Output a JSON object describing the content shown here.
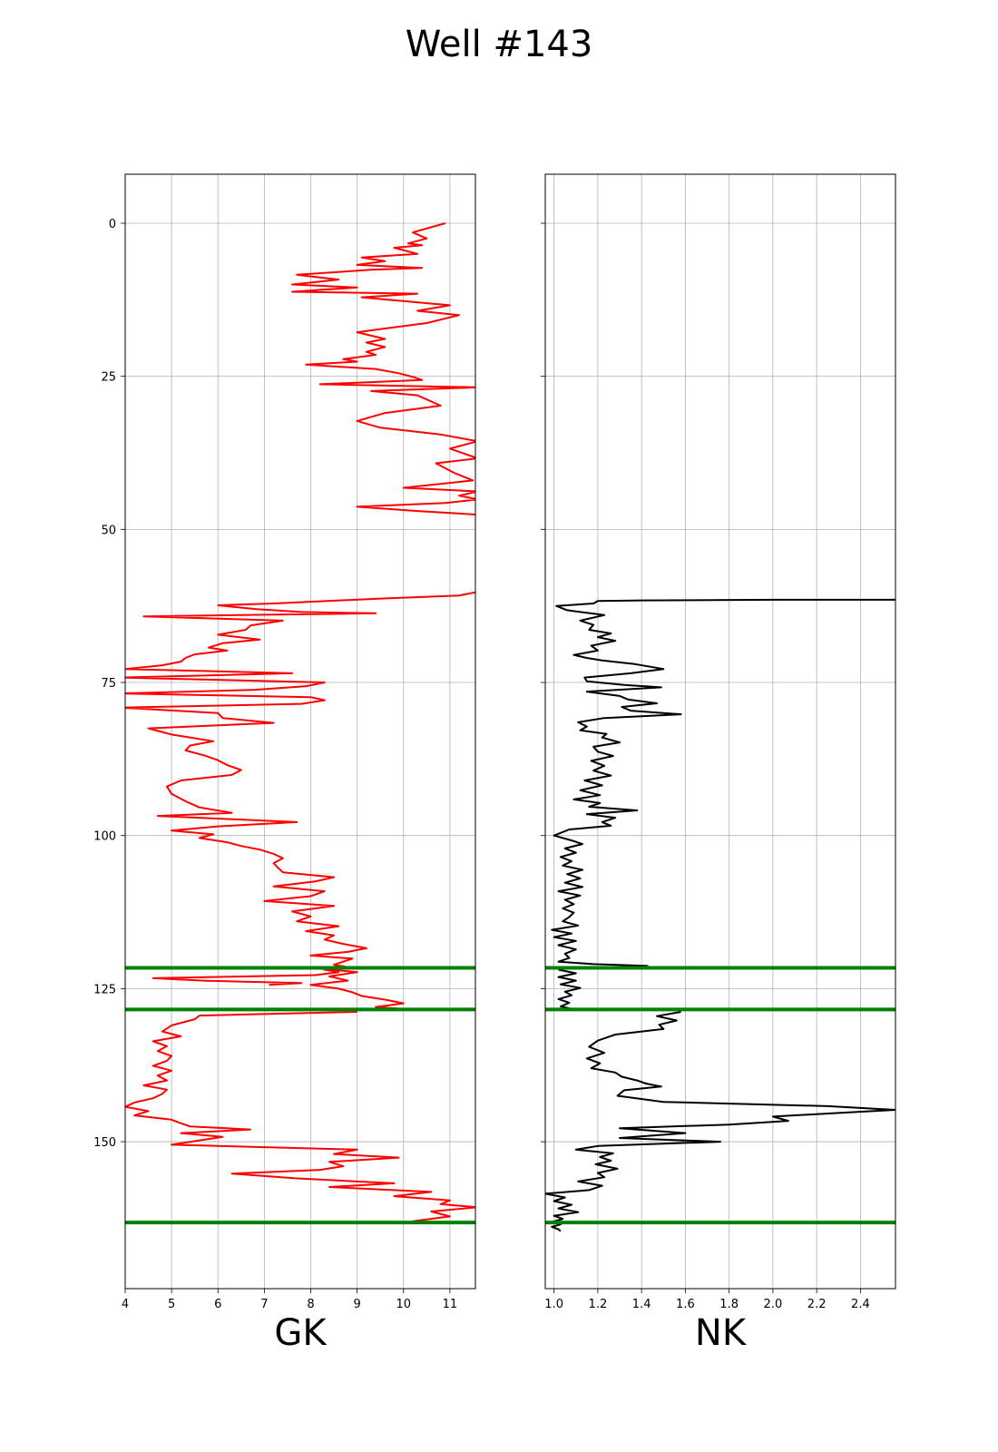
{
  "title": "Well #143",
  "chart_data": [
    {
      "type": "line",
      "xlabel": "GK",
      "ylabel": "",
      "xlim": [
        4,
        11.55
      ],
      "ylim": [
        174,
        -8
      ],
      "y_inverted": true,
      "grid": true,
      "xticks": [
        "4",
        "5",
        "6",
        "7",
        "8",
        "9",
        "10",
        "11"
      ],
      "yticks": [
        "0",
        "25",
        "50",
        "75",
        "100",
        "125",
        "150"
      ],
      "line_color": "#ff0000",
      "series": [
        {
          "x": [
            10.9,
            10.2,
            10.5,
            10.1,
            10.4,
            9.8,
            10.3,
            9.1,
            9.6,
            9.0,
            10.4,
            9.3,
            7.7,
            8.6,
            7.6,
            9.0,
            7.6,
            10.3,
            9.1,
            11.0,
            10.3,
            11.2,
            10.5,
            9.6,
            9.0,
            9.6,
            9.2,
            9.6,
            9.2,
            9.4,
            8.7,
            9.0,
            7.9,
            9.4,
            9.9,
            10.2,
            10.4,
            8.2,
            11.6,
            9.3,
            10.3,
            10.8,
            9.6,
            9.0,
            9.5,
            10.8,
            11.6,
            11.0,
            11.6,
            10.7,
            11.1,
            11.5,
            10.0,
            11.6,
            11.2,
            11.6,
            10.9,
            9.0,
            10.3,
            11.6,
            11.6
          ],
          "y": [
            0,
            1.5,
            2.5,
            3.3,
            3.6,
            4.0,
            5.0,
            5.6,
            6.2,
            6.8,
            7.3,
            7.6,
            8.4,
            9.2,
            10.0,
            10.5,
            11.2,
            11.5,
            12.1,
            13.4,
            14.3,
            15.0,
            16.3,
            17.2,
            17.8,
            18.9,
            19.5,
            20.2,
            21.0,
            21.5,
            22.2,
            22.6,
            23.1,
            23.8,
            24.5,
            25.1,
            25.6,
            26.3,
            26.8,
            27.4,
            28.1,
            29.8,
            31.0,
            32.3,
            33.4,
            34.5,
            35.6,
            36.8,
            38.4,
            39.2,
            40.8,
            42.0,
            43.2,
            43.8,
            44.5,
            45.1,
            45.7,
            46.3,
            47.0,
            47.6,
            48.0
          ]
        },
        {
          "x": [
            11.6,
            11.2,
            9.5,
            7.2,
            6.0,
            6.8,
            7.8,
            9.4,
            4.4,
            7.4,
            6.7,
            6.6,
            6.0,
            6.9,
            6.1,
            5.8,
            6.2,
            5.5,
            5.3,
            5.2,
            4.8,
            4.0,
            7.6,
            3.9,
            8.3,
            7.9,
            6.8,
            3.9,
            8.0,
            8.3,
            7.8,
            3.9,
            6.0,
            6.1,
            7.2,
            4.5,
            5.0,
            5.9,
            5.4,
            5.3,
            5.7,
            6.0,
            6.2,
            6.5,
            6.3,
            5.2,
            4.9,
            5.0,
            5.3,
            5.6,
            6.3,
            4.7,
            6.2,
            7.7,
            6.0,
            5.0,
            5.9,
            5.6,
            6.2,
            6.5,
            6.9,
            7.2,
            7.4,
            7.2,
            7.3,
            7.4,
            8.5,
            8.1,
            7.2,
            8.3,
            8.0,
            7.0,
            8.5,
            7.6,
            8.0,
            7.7,
            8.6,
            7.9,
            8.5,
            8.3,
            8.7,
            9.2,
            8.8,
            8.0,
            8.9,
            8.7,
            8.5,
            8.8,
            8.3,
            8.6,
            8.1,
            4.6,
            5.7,
            7.8,
            7.1
          ],
          "y": [
            60.2,
            60.8,
            61.3,
            62.1,
            62.4,
            63.0,
            63.5,
            63.7,
            64.2,
            64.9,
            65.7,
            66.4,
            67.2,
            68.0,
            68.6,
            69.3,
            69.8,
            70.4,
            71.0,
            71.6,
            72.2,
            72.8,
            73.5,
            74.2,
            75.0,
            75.6,
            76.2,
            76.8,
            77.4,
            77.9,
            78.5,
            79.1,
            80.0,
            80.8,
            81.6,
            82.5,
            83.5,
            84.6,
            85.3,
            86.1,
            86.9,
            87.7,
            88.5,
            89.3,
            90.1,
            91.0,
            92.0,
            93.2,
            94.4,
            95.4,
            96.3,
            96.8,
            97.3,
            97.8,
            98.5,
            99.2,
            99.8,
            100.4,
            101.1,
            101.7,
            102.3,
            103.0,
            103.7,
            104.5,
            105.3,
            106.0,
            106.8,
            107.5,
            108.3,
            109.1,
            109.9,
            110.7,
            111.5,
            112.4,
            113.2,
            114.0,
            114.8,
            115.6,
            116.3,
            117.0,
            117.7,
            118.4,
            119.0,
            119.6,
            120.1,
            120.6,
            121.1,
            121.5,
            121.9,
            122.3,
            122.8,
            123.3,
            123.7,
            124.1,
            124.4
          ]
        },
        {
          "x": [
            8.0,
            9.0,
            8.4,
            8.8,
            8.0,
            8.6,
            8.9,
            9.1,
            9.6,
            10.0,
            9.4,
            10.1
          ],
          "y": [
            121.6,
            122.3,
            123.0,
            123.7,
            124.4,
            125.0,
            125.6,
            126.2,
            126.8,
            127.4,
            128.0,
            128.4
          ]
        },
        {
          "x": [
            9.0,
            5.6,
            5.5,
            5.0,
            4.8,
            5.2,
            4.6,
            4.9,
            4.7,
            5.0,
            4.9,
            4.6,
            5.0,
            4.7,
            4.9,
            4.4,
            4.9,
            4.8,
            4.6,
            4.2,
            4.0,
            4.5,
            4.2,
            5.0,
            5.2,
            5.4,
            6.7,
            5.2,
            6.1,
            5.0,
            9.0,
            8.5,
            9.9,
            8.4,
            8.7,
            8.2,
            6.3,
            7.7,
            9.8,
            8.4,
            10.6,
            9.8,
            11.0,
            10.8,
            11.6,
            10.6,
            11.0,
            10.2
          ],
          "y": [
            128.8,
            129.4,
            130.0,
            131.0,
            132.0,
            132.8,
            133.6,
            134.4,
            135.2,
            136.0,
            136.8,
            137.6,
            138.4,
            139.2,
            140.0,
            140.8,
            141.5,
            142.2,
            142.9,
            143.6,
            144.3,
            145.0,
            145.7,
            146.4,
            147.0,
            147.5,
            148.0,
            148.6,
            149.2,
            150.5,
            151.3,
            152.0,
            152.6,
            153.3,
            154.0,
            154.6,
            155.2,
            156.0,
            156.8,
            157.4,
            158.2,
            158.9,
            159.6,
            160.2,
            160.7,
            161.4,
            162.2,
            163.0
          ]
        }
      ],
      "hlines": [
        121.6,
        128.4,
        163.2
      ],
      "hline_color": "#008000"
    },
    {
      "type": "line",
      "xlabel": "NK",
      "ylabel": "",
      "xlim": [
        0.96,
        2.56
      ],
      "ylim": [
        174,
        -8
      ],
      "y_inverted": true,
      "grid": true,
      "xticks": [
        "1.0",
        "1.2",
        "1.4",
        "1.6",
        "1.8",
        "2.0",
        "2.2",
        "2.4"
      ],
      "yticks": [],
      "line_color": "#000000",
      "series": [
        {
          "x": [
            2.56,
            2.0,
            1.4,
            1.2,
            1.18,
            1.01,
            1.06,
            1.23,
            1.12,
            1.18,
            1.16,
            1.26,
            1.2,
            1.28,
            1.17,
            1.2,
            1.09,
            1.15,
            1.22,
            1.37,
            1.5,
            1.35,
            1.14,
            1.15,
            1.32,
            1.49,
            1.15,
            1.3,
            1.34,
            1.47,
            1.31,
            1.35,
            1.58,
            1.23,
            1.11,
            1.15,
            1.12,
            1.24,
            1.22,
            1.3,
            1.18,
            1.2,
            1.27,
            1.17,
            1.23,
            1.18,
            1.26,
            1.14,
            1.22,
            1.12,
            1.21,
            1.09,
            1.21,
            1.16,
            1.38,
            1.15,
            1.28,
            1.22,
            1.26,
            1.07,
            1.0,
            1.08,
            1.13,
            1.05,
            1.1,
            1.03,
            1.08,
            1.04,
            1.13,
            1.06,
            1.12,
            1.05,
            1.13,
            1.02,
            1.12,
            1.05,
            1.09,
            1.04,
            1.09,
            1.07,
            1.04,
            1.11,
            0.99,
            1.08,
            1.0,
            1.1,
            1.02,
            1.1,
            1.05,
            1.07,
            1.02,
            1.18,
            1.43
          ],
          "y": [
            61.5,
            61.5,
            61.6,
            61.7,
            62.1,
            62.5,
            63.2,
            64.0,
            64.9,
            65.6,
            66.4,
            67.0,
            67.6,
            68.2,
            69.0,
            69.8,
            70.5,
            71.0,
            71.4,
            72.0,
            72.8,
            73.5,
            74.2,
            74.8,
            75.4,
            75.8,
            76.5,
            77.2,
            77.8,
            78.4,
            79.0,
            79.6,
            80.2,
            80.8,
            81.5,
            82.2,
            82.8,
            83.4,
            84.0,
            84.8,
            85.5,
            86.3,
            87.0,
            87.8,
            88.6,
            89.4,
            90.2,
            91.0,
            91.8,
            92.6,
            93.4,
            94.1,
            94.7,
            95.3,
            95.9,
            96.5,
            97.1,
            97.8,
            98.4,
            99.0,
            100.0,
            100.8,
            101.4,
            102.1,
            102.8,
            103.5,
            104.2,
            104.9,
            105.6,
            106.3,
            107.0,
            107.7,
            108.4,
            109.1,
            109.8,
            110.5,
            111.2,
            111.9,
            112.6,
            113.3,
            114.0,
            114.7,
            115.4,
            116.0,
            116.6,
            117.2,
            117.9,
            118.6,
            119.3,
            120.0,
            120.6,
            121.0,
            121.3
          ]
        },
        {
          "x": [
            1.02,
            1.1,
            1.02,
            1.1,
            1.03,
            1.12,
            1.05,
            1.08,
            1.02,
            1.07,
            1.03,
            1.08
          ],
          "y": [
            121.9,
            122.5,
            123.1,
            123.7,
            124.3,
            124.9,
            125.5,
            126.1,
            126.7,
            127.3,
            127.9,
            128.3
          ]
        },
        {
          "x": [
            1.58,
            1.47,
            1.56,
            1.48,
            1.5,
            1.28,
            1.2,
            1.16,
            1.23,
            1.15,
            1.21,
            1.17,
            1.28,
            1.31,
            1.38,
            1.42,
            1.49,
            1.32,
            1.29,
            1.5,
            2.25,
            2.56,
            2.3,
            2.0,
            2.07,
            1.8,
            1.3,
            1.6,
            1.3,
            1.76,
            1.2,
            1.1,
            1.27,
            1.21,
            1.26,
            1.19,
            1.29,
            1.2,
            1.23,
            1.11,
            1.22,
            1.16,
            0.96,
            1.05,
            1.0,
            1.08,
            1.02,
            1.11,
            1.0,
            1.04,
            1.0,
            1.03,
            0.99,
            1.02,
            1.03
          ],
          "y": [
            128.8,
            129.5,
            130.2,
            130.9,
            131.6,
            132.5,
            133.5,
            134.5,
            135.5,
            136.4,
            137.2,
            138.0,
            138.7,
            139.4,
            140.0,
            140.5,
            141.0,
            141.6,
            142.5,
            143.5,
            144.2,
            144.8,
            145.3,
            145.9,
            146.6,
            147.2,
            147.8,
            148.6,
            149.4,
            150.0,
            150.7,
            151.3,
            151.9,
            152.5,
            153.1,
            153.7,
            154.4,
            155.1,
            155.8,
            156.5,
            157.2,
            157.9,
            158.5,
            159.1,
            159.7,
            160.3,
            160.9,
            161.5,
            162.1,
            162.6,
            163.0,
            163.5,
            163.9,
            164.3,
            164.6
          ]
        }
      ],
      "hlines": [
        121.6,
        128.4,
        163.2
      ],
      "hline_color": "#008000"
    }
  ]
}
